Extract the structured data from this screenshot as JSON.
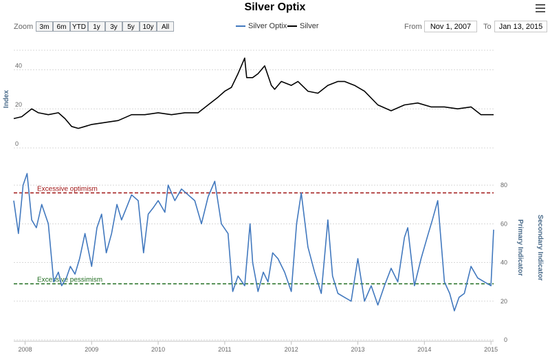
{
  "title": "Silver Optix",
  "toolbar": {
    "zoom_label": "Zoom",
    "zoom_buttons": [
      "3m",
      "6m",
      "YTD",
      "1y",
      "3y",
      "5y",
      "10y",
      "All"
    ],
    "from_label": "From",
    "from_value": "Nov 1, 2007",
    "to_label": "To",
    "to_value": "Jan 13, 2015"
  },
  "legend": {
    "optix_label": "Silver Optix",
    "silver_label": "Silver"
  },
  "colors": {
    "optix": "#4178be",
    "silver": "#000000",
    "optimism": "#a01414",
    "pessimism": "#1e6b1e",
    "axis_text": "#4a6b8a"
  },
  "chart_data": [
    {
      "type": "line",
      "title": "",
      "ylabel": "Index",
      "ylim": [
        0,
        50
      ],
      "y_ticks": [
        0,
        20,
        40
      ],
      "series": [
        {
          "name": "Silver",
          "x": [
            2007.83,
            2007.95,
            2008.1,
            2008.2,
            2008.35,
            2008.5,
            2008.6,
            2008.7,
            2008.8,
            2008.9,
            2009.0,
            2009.2,
            2009.4,
            2009.6,
            2009.8,
            2010.0,
            2010.2,
            2010.4,
            2010.6,
            2010.75,
            2010.9,
            2011.0,
            2011.1,
            2011.2,
            2011.3,
            2011.33,
            2011.42,
            2011.5,
            2011.6,
            2011.7,
            2011.75,
            2011.85,
            2012.0,
            2012.1,
            2012.25,
            2012.4,
            2012.55,
            2012.7,
            2012.8,
            2012.95,
            2013.1,
            2013.3,
            2013.5,
            2013.7,
            2013.9,
            2014.1,
            2014.3,
            2014.5,
            2014.7,
            2014.85,
            2015.04
          ],
          "y": [
            15,
            16,
            20,
            18,
            17,
            18,
            15,
            11,
            10,
            11,
            12,
            13,
            14,
            17,
            17,
            18,
            17,
            18,
            18,
            22,
            26,
            29,
            31,
            38,
            46,
            36,
            36,
            38,
            42,
            32,
            30,
            34,
            32,
            34,
            29,
            28,
            32,
            34,
            34,
            32,
            29,
            22,
            19,
            22,
            23,
            21,
            21,
            20,
            21,
            17,
            17
          ]
        }
      ]
    },
    {
      "type": "line",
      "title": "",
      "ylabel": "Primary Indicator",
      "ylabel2": "Secondary Indicator",
      "ylim": [
        0,
        90
      ],
      "y_ticks": [
        0,
        20,
        40,
        60,
        80
      ],
      "x_ticks": [
        "2008",
        "2009",
        "2010",
        "2011",
        "2012",
        "2013",
        "2014",
        "2015"
      ],
      "series": [
        {
          "name": "Silver Optix",
          "x": [
            2007.83,
            2007.9,
            2007.97,
            2008.03,
            2008.1,
            2008.17,
            2008.25,
            2008.35,
            2008.43,
            2008.5,
            2008.55,
            2008.62,
            2008.68,
            2008.75,
            2008.82,
            2008.9,
            2009.0,
            2009.08,
            2009.15,
            2009.22,
            2009.3,
            2009.38,
            2009.45,
            2009.52,
            2009.6,
            2009.7,
            2009.78,
            2009.85,
            2009.92,
            2010.0,
            2010.1,
            2010.15,
            2010.25,
            2010.35,
            2010.45,
            2010.55,
            2010.65,
            2010.75,
            2010.85,
            2010.95,
            2011.05,
            2011.12,
            2011.2,
            2011.3,
            2011.38,
            2011.42,
            2011.5,
            2011.58,
            2011.65,
            2011.72,
            2011.8,
            2011.9,
            2012.0,
            2012.08,
            2012.15,
            2012.25,
            2012.35,
            2012.45,
            2012.55,
            2012.62,
            2012.7,
            2012.8,
            2012.9,
            2013.0,
            2013.1,
            2013.2,
            2013.3,
            2013.4,
            2013.5,
            2013.6,
            2013.7,
            2013.75,
            2013.85,
            2013.95,
            2014.05,
            2014.12,
            2014.2,
            2014.3,
            2014.38,
            2014.45,
            2014.52,
            2014.6,
            2014.7,
            2014.8,
            2014.9,
            2015.0,
            2015.04
          ],
          "y": [
            72,
            55,
            80,
            86,
            62,
            58,
            70,
            60,
            30,
            35,
            28,
            32,
            38,
            34,
            42,
            55,
            38,
            58,
            65,
            45,
            55,
            70,
            62,
            68,
            75,
            72,
            45,
            65,
            68,
            72,
            66,
            80,
            72,
            78,
            75,
            72,
            60,
            74,
            82,
            60,
            55,
            25,
            33,
            28,
            60,
            40,
            25,
            35,
            30,
            45,
            42,
            35,
            25,
            60,
            76,
            48,
            35,
            24,
            62,
            33,
            24,
            22,
            20,
            42,
            20,
            28,
            18,
            28,
            37,
            30,
            53,
            58,
            28,
            42,
            54,
            62,
            72,
            30,
            24,
            15,
            22,
            24,
            38,
            32,
            30,
            28,
            57
          ]
        }
      ],
      "reference_lines": [
        {
          "label": "Excessive optimism",
          "value": 76
        },
        {
          "label": "Excessive pessimism",
          "value": 29
        }
      ]
    }
  ]
}
